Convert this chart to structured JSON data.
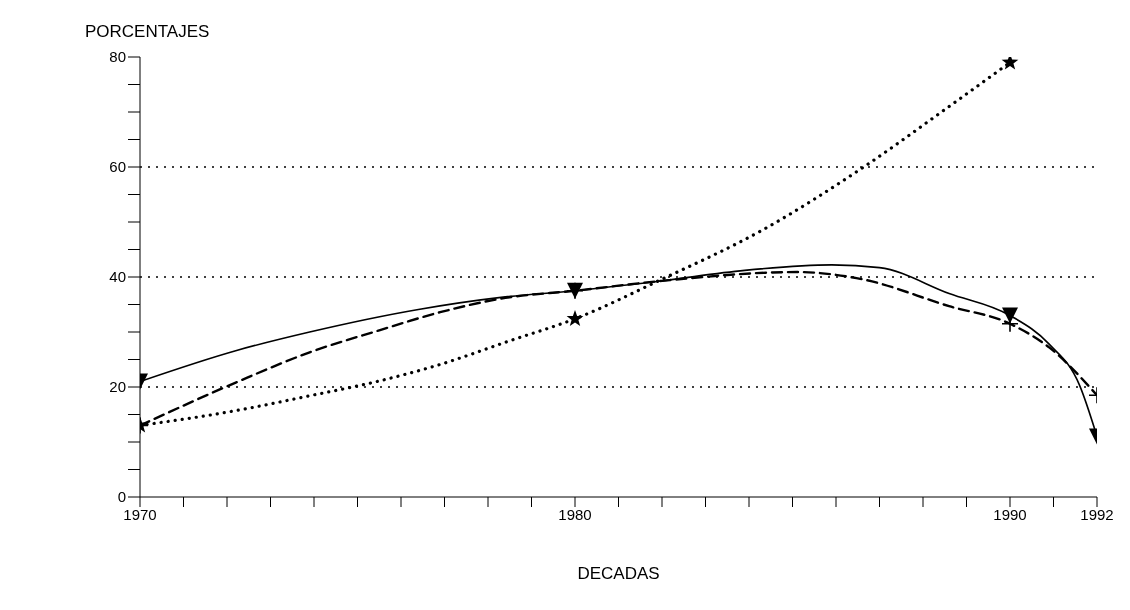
{
  "chart_data": {
    "type": "line",
    "ylabel": "PORCENTAJES",
    "xlabel": "DECADAS",
    "xlim": [
      1970,
      1992
    ],
    "ylim": [
      0,
      80
    ],
    "xticks": [
      1970,
      {
        "value": 1971,
        "label": null
      },
      {
        "value": 1972,
        "label": null
      },
      {
        "value": 1973,
        "label": null
      },
      {
        "value": 1974,
        "label": null
      },
      {
        "value": 1975,
        "label": null
      },
      {
        "value": 1976,
        "label": null
      },
      {
        "value": 1977,
        "label": null
      },
      {
        "value": 1978,
        "label": null
      },
      {
        "value": 1979,
        "label": null
      },
      1980,
      {
        "value": 1981,
        "label": null
      },
      {
        "value": 1982,
        "label": null
      },
      {
        "value": 1983,
        "label": null
      },
      {
        "value": 1984,
        "label": null
      },
      {
        "value": 1985,
        "label": null
      },
      {
        "value": 1986,
        "label": null
      },
      {
        "value": 1987,
        "label": null
      },
      {
        "value": 1988,
        "label": null
      },
      {
        "value": 1989,
        "label": null
      },
      1990,
      {
        "value": 1991,
        "label": null
      },
      1992
    ],
    "yticks": [
      0,
      {
        "value": 5,
        "label": null
      },
      {
        "value": 10,
        "label": null
      },
      {
        "value": 15,
        "label": null
      },
      20,
      {
        "value": 25,
        "label": null
      },
      {
        "value": 30,
        "label": null
      },
      {
        "value": 35,
        "label": null
      },
      40,
      {
        "value": 45,
        "label": null
      },
      {
        "value": 50,
        "label": null
      },
      {
        "value": 55,
        "label": null
      },
      60,
      {
        "value": 65,
        "label": null
      },
      {
        "value": 70,
        "label": null
      },
      {
        "value": 75,
        "label": null
      },
      80
    ],
    "grid": "y",
    "series": [
      {
        "type": "line",
        "color": "#000000",
        "line_style": "solid",
        "marker": "none",
        "x": [
          1970,
          1972.2,
          1973.9,
          1976.4,
          1978.3,
          1980,
          1982,
          1983.9,
          1985.9,
          1987,
          1988.6,
          1990,
          1990.9,
          1991.6,
          1992
        ],
        "values": [
          21,
          26.6,
          30,
          34.1,
          36.3,
          37.5,
          39.3,
          41.2,
          42.2,
          41.7,
          37,
          33,
          27.8,
          20.3,
          11
        ]
      },
      {
        "type": "line",
        "color": "#000000",
        "line_style": "dashed",
        "marker": "none",
        "x": [
          1970,
          1972.2,
          1973.9,
          1975.5,
          1976.9,
          1978.4,
          1980,
          1982,
          1985.1,
          1986.6,
          1988.6,
          1990,
          1990.9,
          1992
        ],
        "values": [
          13,
          20.8,
          26.3,
          30.3,
          33.6,
          36.2,
          37.5,
          39.3,
          40.9,
          39.6,
          34.7,
          31.5,
          27.2,
          18.5
        ]
      },
      {
        "type": "line",
        "color": "#000000",
        "line_style": "dotted",
        "marker": "none",
        "x": [
          1970,
          1972.2,
          1973.9,
          1975.5,
          1976.9,
          1978.5,
          1980,
          1982,
          1984.3,
          1986.6,
          1988.6,
          1990
        ],
        "values": [
          13,
          15.7,
          18.4,
          21.1,
          24.1,
          28.4,
          32.4,
          39.6,
          48.5,
          59.8,
          71,
          79
        ]
      },
      {
        "type": "scatter",
        "color": "#000000",
        "marker": "triangle",
        "x": [
          1970,
          1980,
          1990,
          1992
        ],
        "values": [
          21,
          37.5,
          33,
          11
        ]
      },
      {
        "type": "scatter",
        "color": "#000000",
        "marker": "cross",
        "x": [
          1970,
          1980,
          1990,
          1992
        ],
        "values": [
          13,
          37.5,
          31.5,
          18.5
        ]
      },
      {
        "type": "scatter",
        "color": "#000000",
        "marker": "star",
        "x": [
          1970,
          1980,
          1990
        ],
        "values": [
          13,
          32.4,
          79
        ]
      }
    ]
  }
}
